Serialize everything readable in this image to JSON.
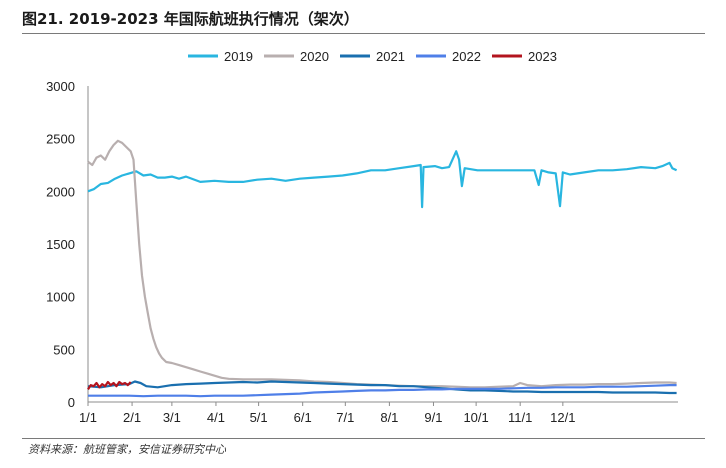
{
  "header": {
    "title": "图21. 2019-2023 年国际航班执行情况（架次）"
  },
  "footer": {
    "source": "资料来源：航班管家，安信证券研究中心"
  },
  "chart_data": {
    "type": "line",
    "title": "图21. 2019-2023 年国际航班执行情况（架次）",
    "xlabel": "",
    "ylabel": "",
    "ylim": [
      0,
      3000
    ],
    "yticks": [
      0,
      500,
      1000,
      1500,
      2000,
      2500,
      3000
    ],
    "x_tick_labels": [
      "1/1",
      "2/1",
      "3/1",
      "4/1",
      "5/1",
      "6/1",
      "7/1",
      "8/1",
      "9/1",
      "10/1",
      "11/1",
      "12/1"
    ],
    "x_tick_day_of_year": [
      1,
      32,
      60,
      91,
      121,
      152,
      182,
      213,
      244,
      274,
      305,
      335
    ],
    "legend_position": "top",
    "grid": false,
    "series": [
      {
        "name": "2019",
        "color": "#29B6E0",
        "points": [
          [
            1,
            2000
          ],
          [
            5,
            2020
          ],
          [
            10,
            2070
          ],
          [
            15,
            2080
          ],
          [
            20,
            2120
          ],
          [
            25,
            2150
          ],
          [
            30,
            2170
          ],
          [
            35,
            2190
          ],
          [
            40,
            2150
          ],
          [
            45,
            2160
          ],
          [
            50,
            2130
          ],
          [
            55,
            2130
          ],
          [
            60,
            2140
          ],
          [
            65,
            2120
          ],
          [
            70,
            2140
          ],
          [
            80,
            2090
          ],
          [
            90,
            2100
          ],
          [
            100,
            2090
          ],
          [
            110,
            2090
          ],
          [
            120,
            2110
          ],
          [
            130,
            2120
          ],
          [
            140,
            2100
          ],
          [
            150,
            2120
          ],
          [
            160,
            2130
          ],
          [
            170,
            2140
          ],
          [
            180,
            2150
          ],
          [
            190,
            2170
          ],
          [
            200,
            2200
          ],
          [
            210,
            2200
          ],
          [
            220,
            2220
          ],
          [
            230,
            2240
          ],
          [
            235,
            2250
          ],
          [
            236,
            1850
          ],
          [
            237,
            2230
          ],
          [
            245,
            2240
          ],
          [
            250,
            2220
          ],
          [
            255,
            2230
          ],
          [
            260,
            2380
          ],
          [
            262,
            2300
          ],
          [
            264,
            2050
          ],
          [
            266,
            2220
          ],
          [
            275,
            2200
          ],
          [
            285,
            2200
          ],
          [
            295,
            2200
          ],
          [
            305,
            2200
          ],
          [
            315,
            2200
          ],
          [
            318,
            2060
          ],
          [
            320,
            2200
          ],
          [
            325,
            2180
          ],
          [
            330,
            2170
          ],
          [
            333,
            1860
          ],
          [
            335,
            2180
          ],
          [
            340,
            2160
          ],
          [
            350,
            2180
          ],
          [
            360,
            2200
          ],
          [
            370,
            2200
          ],
          [
            380,
            2210
          ],
          [
            390,
            2230
          ],
          [
            400,
            2220
          ],
          [
            405,
            2240
          ],
          [
            410,
            2270
          ],
          [
            412,
            2220
          ],
          [
            415,
            2200
          ]
        ]
      },
      {
        "name": "2020",
        "color": "#B8AFAF",
        "points": [
          [
            1,
            2280
          ],
          [
            4,
            2250
          ],
          [
            7,
            2320
          ],
          [
            10,
            2340
          ],
          [
            13,
            2300
          ],
          [
            16,
            2380
          ],
          [
            19,
            2440
          ],
          [
            22,
            2480
          ],
          [
            25,
            2460
          ],
          [
            28,
            2420
          ],
          [
            31,
            2380
          ],
          [
            33,
            2300
          ],
          [
            35,
            1900
          ],
          [
            37,
            1500
          ],
          [
            39,
            1200
          ],
          [
            41,
            1000
          ],
          [
            43,
            850
          ],
          [
            45,
            700
          ],
          [
            47,
            600
          ],
          [
            49,
            520
          ],
          [
            51,
            460
          ],
          [
            53,
            420
          ],
          [
            56,
            380
          ],
          [
            60,
            370
          ],
          [
            65,
            350
          ],
          [
            70,
            330
          ],
          [
            75,
            310
          ],
          [
            80,
            290
          ],
          [
            85,
            270
          ],
          [
            90,
            250
          ],
          [
            95,
            230
          ],
          [
            100,
            220
          ],
          [
            110,
            215
          ],
          [
            120,
            215
          ],
          [
            130,
            215
          ],
          [
            140,
            210
          ],
          [
            150,
            205
          ],
          [
            160,
            195
          ],
          [
            170,
            190
          ],
          [
            180,
            180
          ],
          [
            190,
            170
          ],
          [
            200,
            165
          ],
          [
            210,
            160
          ],
          [
            220,
            155
          ],
          [
            230,
            150
          ],
          [
            240,
            150
          ],
          [
            250,
            150
          ],
          [
            260,
            145
          ],
          [
            270,
            140
          ],
          [
            280,
            140
          ],
          [
            290,
            145
          ],
          [
            300,
            150
          ],
          [
            305,
            180
          ],
          [
            310,
            160
          ],
          [
            320,
            150
          ],
          [
            330,
            160
          ],
          [
            340,
            165
          ],
          [
            350,
            165
          ],
          [
            360,
            170
          ],
          [
            370,
            170
          ],
          [
            380,
            175
          ],
          [
            390,
            180
          ],
          [
            400,
            185
          ],
          [
            410,
            185
          ],
          [
            415,
            180
          ]
        ]
      },
      {
        "name": "2021",
        "color": "#1A6FAF",
        "points": [
          [
            1,
            150
          ],
          [
            10,
            140
          ],
          [
            20,
            160
          ],
          [
            30,
            170
          ],
          [
            34,
            195
          ],
          [
            38,
            180
          ],
          [
            42,
            150
          ],
          [
            50,
            140
          ],
          [
            60,
            160
          ],
          [
            70,
            170
          ],
          [
            80,
            175
          ],
          [
            90,
            180
          ],
          [
            100,
            185
          ],
          [
            110,
            190
          ],
          [
            120,
            185
          ],
          [
            130,
            195
          ],
          [
            140,
            190
          ],
          [
            150,
            185
          ],
          [
            160,
            180
          ],
          [
            170,
            175
          ],
          [
            180,
            170
          ],
          [
            190,
            165
          ],
          [
            200,
            160
          ],
          [
            210,
            160
          ],
          [
            220,
            150
          ],
          [
            230,
            150
          ],
          [
            240,
            140
          ],
          [
            250,
            130
          ],
          [
            260,
            120
          ],
          [
            270,
            110
          ],
          [
            280,
            110
          ],
          [
            290,
            105
          ],
          [
            300,
            100
          ],
          [
            310,
            100
          ],
          [
            320,
            95
          ],
          [
            330,
            95
          ],
          [
            340,
            95
          ],
          [
            350,
            95
          ],
          [
            360,
            95
          ],
          [
            370,
            90
          ],
          [
            380,
            90
          ],
          [
            390,
            90
          ],
          [
            400,
            90
          ],
          [
            410,
            85
          ],
          [
            415,
            85
          ]
        ]
      },
      {
        "name": "2022",
        "color": "#4F7FE8",
        "points": [
          [
            1,
            60
          ],
          [
            10,
            60
          ],
          [
            20,
            60
          ],
          [
            30,
            60
          ],
          [
            40,
            55
          ],
          [
            50,
            60
          ],
          [
            60,
            60
          ],
          [
            70,
            60
          ],
          [
            80,
            55
          ],
          [
            90,
            60
          ],
          [
            100,
            60
          ],
          [
            110,
            60
          ],
          [
            120,
            65
          ],
          [
            130,
            70
          ],
          [
            140,
            75
          ],
          [
            150,
            80
          ],
          [
            160,
            90
          ],
          [
            170,
            95
          ],
          [
            180,
            100
          ],
          [
            190,
            105
          ],
          [
            200,
            110
          ],
          [
            210,
            110
          ],
          [
            220,
            115
          ],
          [
            230,
            115
          ],
          [
            240,
            120
          ],
          [
            250,
            120
          ],
          [
            260,
            125
          ],
          [
            270,
            125
          ],
          [
            280,
            125
          ],
          [
            290,
            125
          ],
          [
            300,
            130
          ],
          [
            310,
            135
          ],
          [
            320,
            135
          ],
          [
            330,
            140
          ],
          [
            340,
            140
          ],
          [
            350,
            140
          ],
          [
            360,
            145
          ],
          [
            370,
            145
          ],
          [
            380,
            145
          ],
          [
            390,
            150
          ],
          [
            400,
            155
          ],
          [
            410,
            160
          ],
          [
            415,
            160
          ]
        ]
      },
      {
        "name": "2023",
        "color": "#B3141E",
        "points": [
          [
            1,
            120
          ],
          [
            3,
            160
          ],
          [
            5,
            150
          ],
          [
            7,
            180
          ],
          [
            9,
            140
          ],
          [
            11,
            170
          ],
          [
            13,
            150
          ],
          [
            15,
            190
          ],
          [
            17,
            160
          ],
          [
            19,
            180
          ],
          [
            21,
            150
          ],
          [
            23,
            190
          ],
          [
            25,
            170
          ],
          [
            27,
            180
          ],
          [
            29,
            160
          ],
          [
            31,
            190
          ]
        ]
      }
    ]
  }
}
